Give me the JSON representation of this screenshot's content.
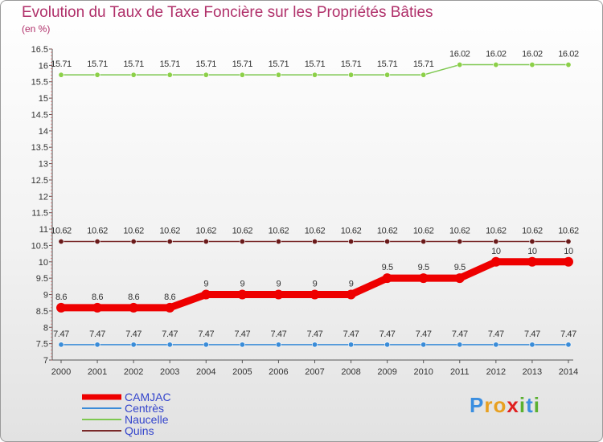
{
  "chart_data": {
    "type": "line",
    "title": "Evolution du Taux de Taxe Foncière sur les Propriétés Bâties",
    "subtitle": "(en %)",
    "xlabel": "",
    "ylabel": "(en %)",
    "categories": [
      "2000",
      "2001",
      "2002",
      "2003",
      "2004",
      "2005",
      "2006",
      "2007",
      "2008",
      "2009",
      "2010",
      "2011",
      "2012",
      "2013",
      "2014"
    ],
    "ylim": [
      7,
      16.5
    ],
    "yticks": [
      "7",
      "7.5",
      "8",
      "8.5",
      "9",
      "9.5",
      "10",
      "10.5",
      "11",
      "11.5",
      "12",
      "12.5",
      "13",
      "13.5",
      "14",
      "14.5",
      "15",
      "15.5",
      "16",
      "16.5"
    ],
    "grid": false,
    "legend_position": "bottom-left",
    "series": [
      {
        "name": "Naucelle",
        "color": "#7ec850",
        "point_color": "#8cd048",
        "values": [
          15.71,
          15.71,
          15.71,
          15.71,
          15.71,
          15.71,
          15.71,
          15.71,
          15.71,
          15.71,
          15.71,
          16.02,
          16.02,
          16.02,
          16.02
        ],
        "labels": [
          "15.71",
          "15.71",
          "15.71",
          "15.71",
          "15.71",
          "15.71",
          "15.71",
          "15.71",
          "15.71",
          "15.71",
          "15.71",
          "16.02",
          "16.02",
          "16.02",
          "16.02"
        ]
      },
      {
        "name": "Quins",
        "color": "#7a2a2a",
        "point_color": "#6a1a1a",
        "values": [
          10.62,
          10.62,
          10.62,
          10.62,
          10.62,
          10.62,
          10.62,
          10.62,
          10.62,
          10.62,
          10.62,
          10.62,
          10.62,
          10.62,
          10.62
        ],
        "labels": [
          "10.62",
          "10.62",
          "10.62",
          "10.62",
          "10.62",
          "10.62",
          "10.62",
          "10.62",
          "10.62",
          "10.62",
          "10.62",
          "10.62",
          "10.62",
          "10.62",
          "10.62"
        ]
      },
      {
        "name": "CAMJAC",
        "color": "#ee0000",
        "point_color": "#ee0000",
        "values": [
          8.6,
          8.6,
          8.6,
          8.6,
          9,
          9,
          9,
          9,
          9,
          9.5,
          9.5,
          9.5,
          10,
          10,
          10
        ],
        "labels": [
          "8.6",
          "8.6",
          "8.6",
          "8.6",
          "9",
          "9",
          "9",
          "9",
          "9",
          "9.5",
          "9.5",
          "9.5",
          "10",
          "10",
          "10"
        ]
      },
      {
        "name": "Centrès",
        "color": "#3a8cd8",
        "point_color": "#3a8cd8",
        "values": [
          7.47,
          7.47,
          7.47,
          7.47,
          7.47,
          7.47,
          7.47,
          7.47,
          7.47,
          7.47,
          7.47,
          7.47,
          7.47,
          7.47,
          7.47
        ],
        "labels": [
          "7.47",
          "7.47",
          "7.47",
          "7.47",
          "7.47",
          "7.47",
          "7.47",
          "7.47",
          "7.47",
          "7.47",
          "7.47",
          "7.47",
          "7.47",
          "7.47",
          "7.47"
        ]
      }
    ],
    "legend": [
      {
        "name": "CAMJAC",
        "color": "#ee0000"
      },
      {
        "name": "Centrès",
        "color": "#3a8cd8"
      },
      {
        "name": "Naucelle",
        "color": "#7ec850"
      },
      {
        "name": "Quins",
        "color": "#7a2a2a"
      }
    ]
  },
  "logo": {
    "letters": [
      {
        "char": "P",
        "color": "#3a8ee0"
      },
      {
        "char": "r",
        "color": "#e8a020"
      },
      {
        "char": "o",
        "color": "#e8a020"
      },
      {
        "char": "x",
        "color": "#e02020"
      },
      {
        "char": "i",
        "color": "#5ab030"
      },
      {
        "char": "t",
        "color": "#3a8ee0"
      },
      {
        "char": "i",
        "color": "#5ab030"
      }
    ]
  }
}
